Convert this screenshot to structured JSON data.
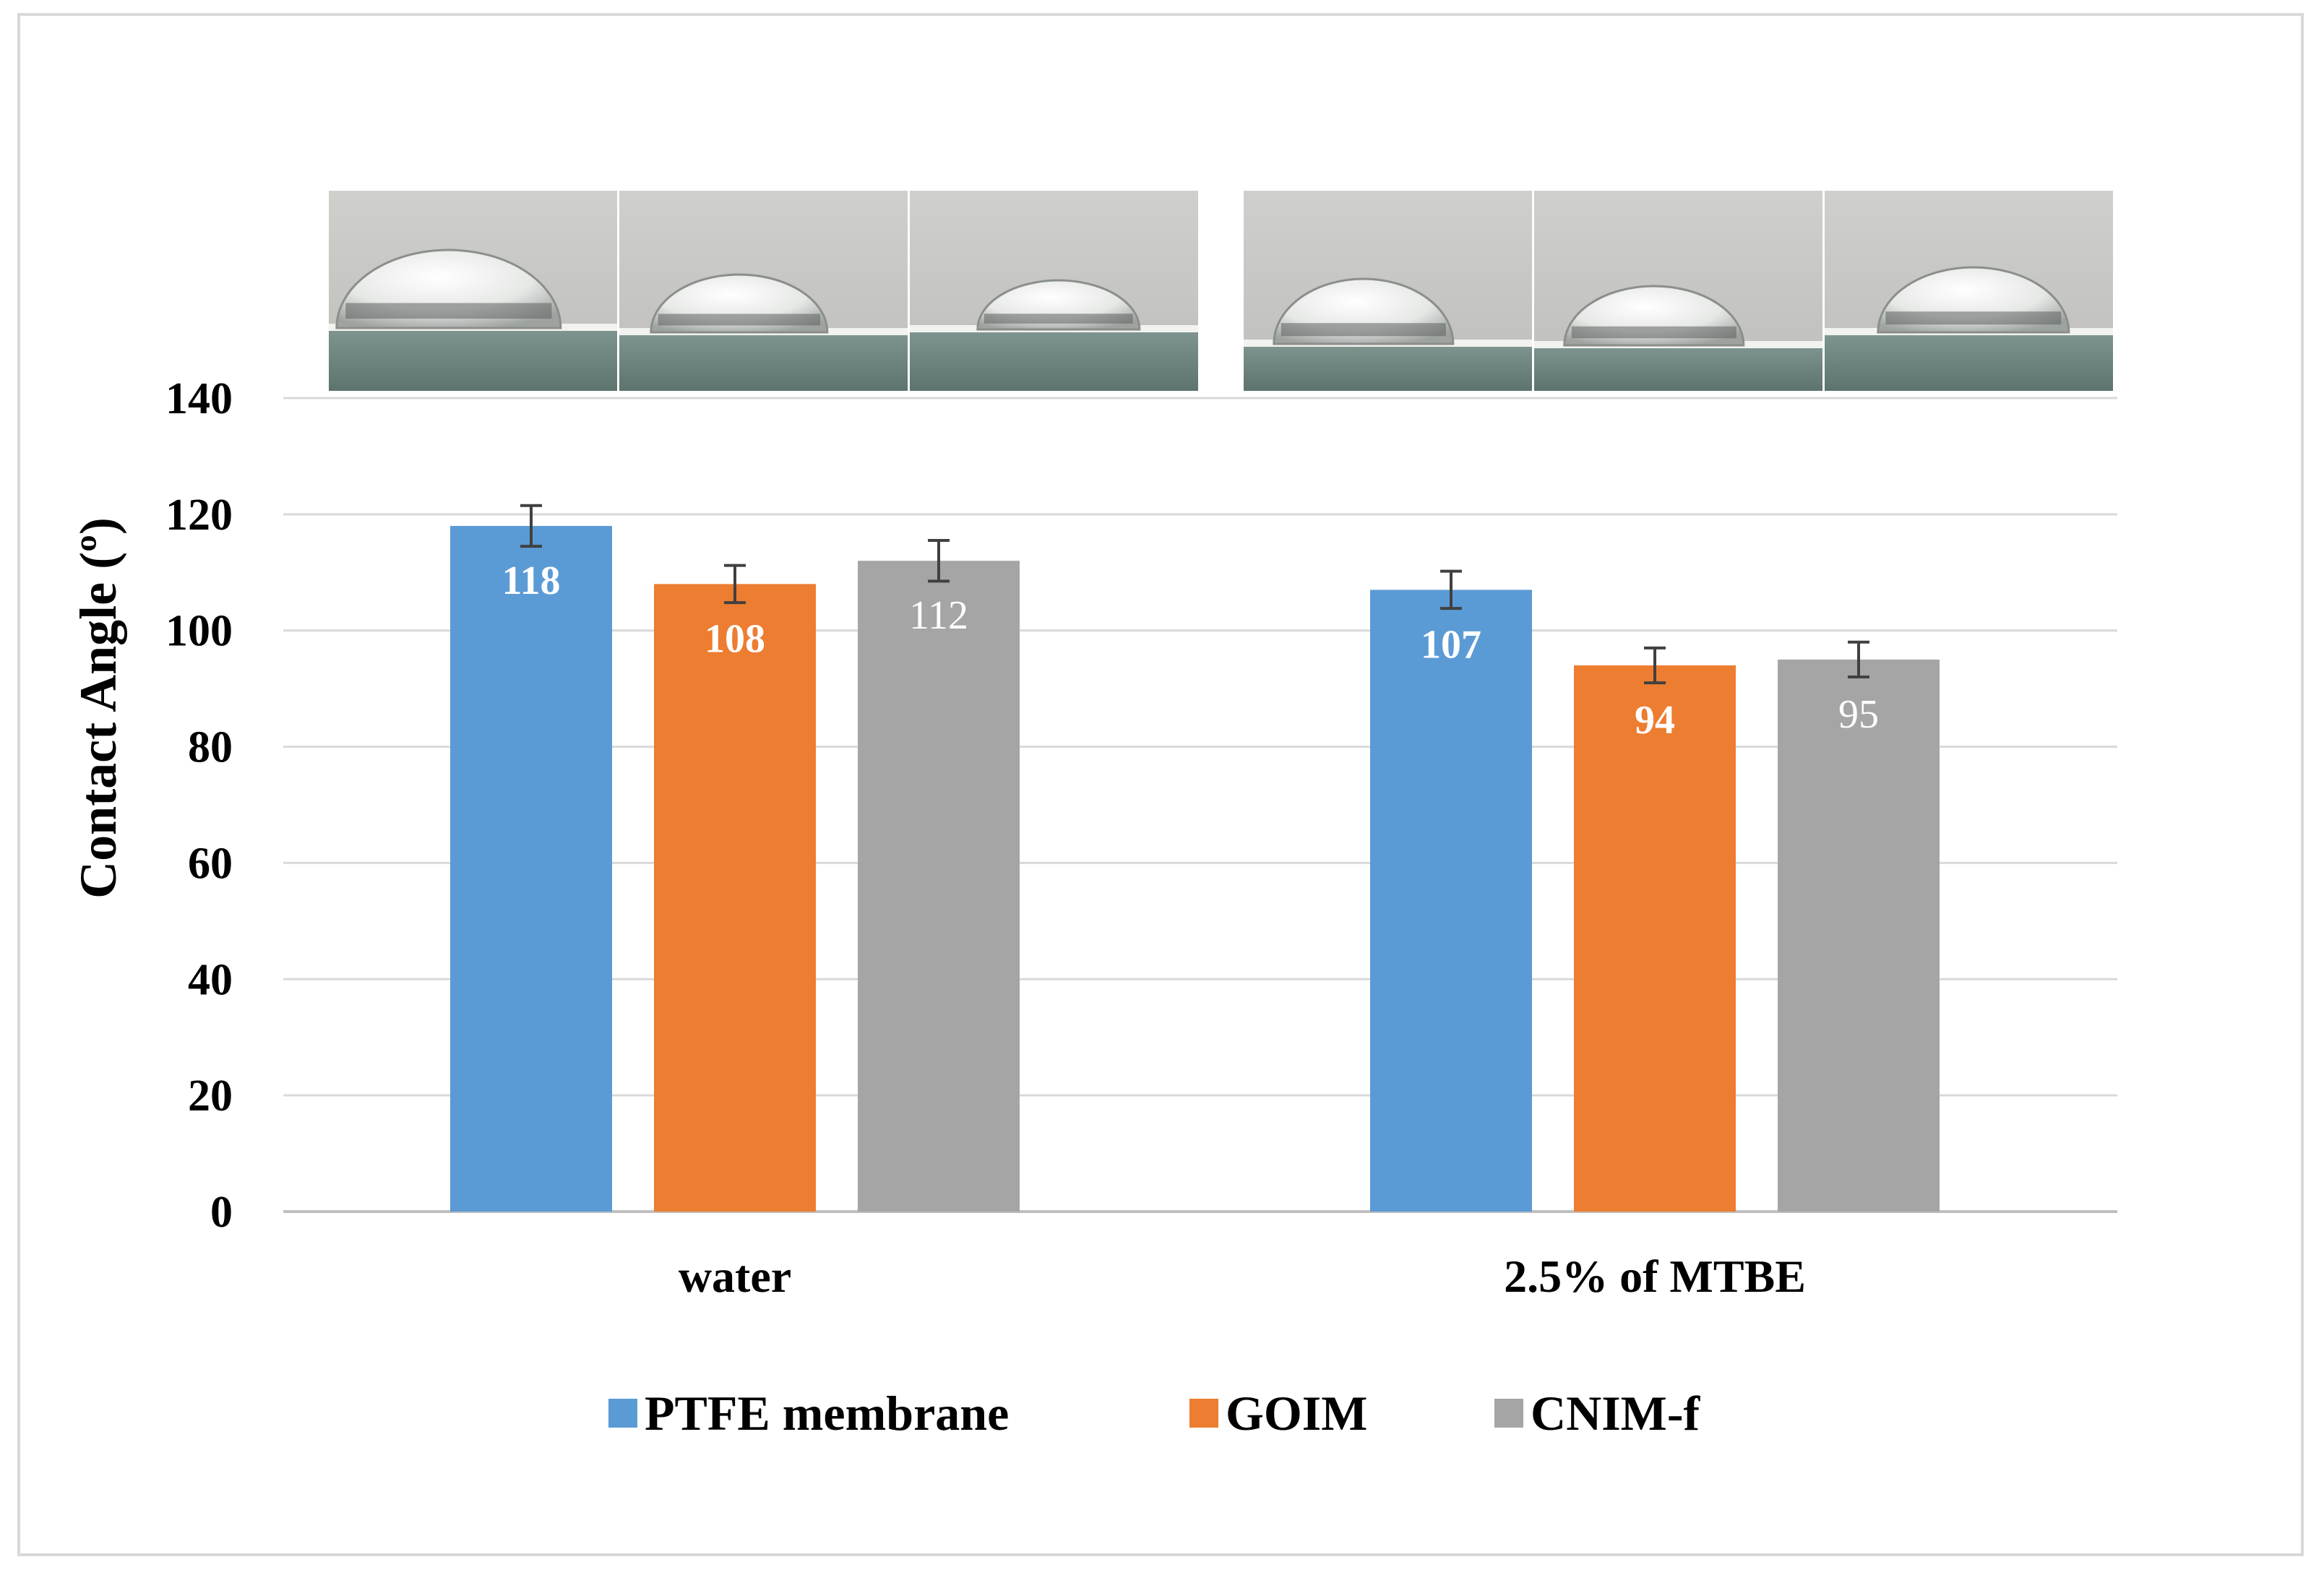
{
  "chart_data": {
    "type": "bar",
    "categories": [
      "water",
      "2.5% of MTBE"
    ],
    "series": [
      {
        "name": "PTFE membrane",
        "color": "#5b9bd5",
        "values": [
          118,
          107
        ],
        "errors": [
          3.5,
          3.2
        ],
        "label_bold": true
      },
      {
        "name": "GOIM",
        "color": "#ed7d31",
        "values": [
          108,
          94
        ],
        "errors": [
          3.2,
          3.0
        ],
        "label_bold": true
      },
      {
        "name": "CNIM-f",
        "color": "#a5a5a5",
        "values": [
          112,
          95
        ],
        "errors": [
          3.5,
          3.0
        ],
        "label_bold": false
      }
    ],
    "data_labels": [
      [
        "118",
        "107"
      ],
      [
        "108",
        "94"
      ],
      [
        "112",
        "95"
      ]
    ],
    "ylabel": "Contact Angle (º)",
    "xlabel": "",
    "ylim": [
      0,
      140
    ],
    "yticks": [
      0,
      20,
      40,
      60,
      80,
      100,
      120,
      140
    ],
    "ytick_labels": [
      "0",
      "20",
      "40",
      "60",
      "80",
      "100",
      "120",
      "140"
    ],
    "grid": true,
    "legend_position": "bottom",
    "inset_images": "droplet photographs above each category group (3 per group)"
  },
  "colors": {
    "gridline": "#d9d9d9",
    "axis": "#bfbfbf",
    "background": "#ffffff"
  }
}
